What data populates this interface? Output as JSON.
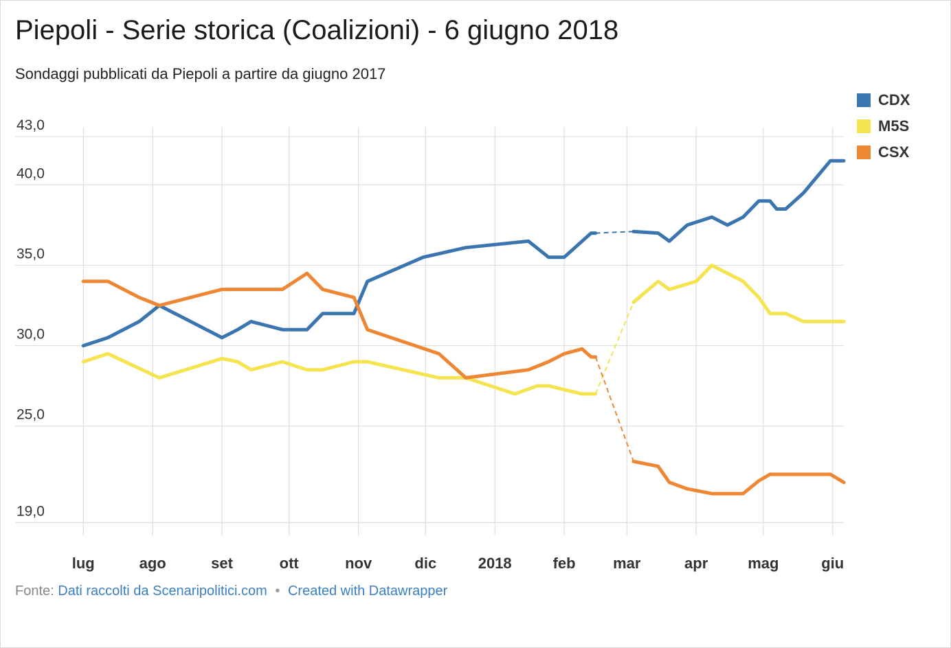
{
  "title": "Piepoli - Serie storica (Coalizioni) - 6 giugno 2018",
  "subtitle": "Sondaggi pubblicati da Piepoli a partire da giugno 2017",
  "footer": {
    "source_label": "Fonte:",
    "source_link": "Dati raccolti da Scenaripolitici.com",
    "separator": "•",
    "credit_link": "Created with Datawrapper"
  },
  "colors": {
    "CDX": "#3b75b0",
    "M5S": "#f5e34f",
    "CSX": "#ee8734",
    "grid": "#dddddd"
  },
  "chart_data": {
    "type": "line",
    "title": "Piepoli - Serie storica (Coalizioni) - 6 giugno 2018",
    "subtitle": "Sondaggi pubblicati da Piepoli a partire da giugno 2017",
    "xlabel": "",
    "ylabel": "",
    "x_range": [
      "2017-06-30",
      "2018-06-06"
    ],
    "x_ticks": [
      {
        "date": "2017-07-01",
        "label": "lug"
      },
      {
        "date": "2017-08-01",
        "label": "ago"
      },
      {
        "date": "2017-09-01",
        "label": "set"
      },
      {
        "date": "2017-10-01",
        "label": "ott"
      },
      {
        "date": "2017-11-01",
        "label": "nov"
      },
      {
        "date": "2017-12-01",
        "label": "dic"
      },
      {
        "date": "2018-01-01",
        "label": "2018"
      },
      {
        "date": "2018-02-01",
        "label": "feb"
      },
      {
        "date": "2018-03-01",
        "label": "mar"
      },
      {
        "date": "2018-04-01",
        "label": "apr"
      },
      {
        "date": "2018-05-01",
        "label": "mag"
      },
      {
        "date": "2018-06-01",
        "label": "giu"
      }
    ],
    "y_ticks": [
      {
        "value": 19,
        "label": "19,0"
      },
      {
        "value": 25,
        "label": "25,0"
      },
      {
        "value": 30,
        "label": "30,0"
      },
      {
        "value": 35,
        "label": "35,0"
      },
      {
        "value": 40,
        "label": "40,0"
      },
      {
        "value": 43,
        "label": "43,0"
      }
    ],
    "ylim": [
      18.2,
      43.6
    ],
    "grid": true,
    "legend": "top-right",
    "gap": [
      "2018-02-15",
      "2018-03-04"
    ],
    "series": [
      {
        "name": "CDX",
        "color": "#3b75b0",
        "points": [
          [
            "2017-07-01",
            30.0
          ],
          [
            "2017-07-12",
            30.5
          ],
          [
            "2017-07-26",
            31.5
          ],
          [
            "2017-08-04",
            32.5
          ],
          [
            "2017-08-25",
            31.0
          ],
          [
            "2017-09-01",
            30.5
          ],
          [
            "2017-09-08",
            31.0
          ],
          [
            "2017-09-14",
            31.5
          ],
          [
            "2017-09-28",
            31.0
          ],
          [
            "2017-10-09",
            31.0
          ],
          [
            "2017-10-16",
            32.0
          ],
          [
            "2017-10-30",
            32.0
          ],
          [
            "2017-11-05",
            34.0
          ],
          [
            "2017-11-30",
            35.5
          ],
          [
            "2017-12-19",
            36.1
          ],
          [
            "2018-01-16",
            36.5
          ],
          [
            "2018-01-25",
            35.5
          ],
          [
            "2018-02-01",
            35.5
          ],
          [
            "2018-02-13",
            37.0
          ],
          [
            "2018-02-15",
            37.0
          ],
          [
            "2018-03-04",
            37.1
          ],
          [
            "2018-03-15",
            37.0
          ],
          [
            "2018-03-20",
            36.5
          ],
          [
            "2018-03-28",
            37.5
          ],
          [
            "2018-04-08",
            38.0
          ],
          [
            "2018-04-15",
            37.5
          ],
          [
            "2018-04-22",
            38.0
          ],
          [
            "2018-04-29",
            39.0
          ],
          [
            "2018-05-04",
            39.0
          ],
          [
            "2018-05-07",
            38.5
          ],
          [
            "2018-05-11",
            38.5
          ],
          [
            "2018-05-19",
            39.5
          ],
          [
            "2018-05-31",
            41.5
          ],
          [
            "2018-06-06",
            41.5
          ]
        ]
      },
      {
        "name": "M5S",
        "color": "#f5e34f",
        "points": [
          [
            "2017-07-01",
            29.0
          ],
          [
            "2017-07-12",
            29.5
          ],
          [
            "2017-08-04",
            28.0
          ],
          [
            "2017-09-01",
            29.2
          ],
          [
            "2017-09-08",
            29.0
          ],
          [
            "2017-09-14",
            28.5
          ],
          [
            "2017-09-28",
            29.0
          ],
          [
            "2017-10-09",
            28.5
          ],
          [
            "2017-10-16",
            28.5
          ],
          [
            "2017-10-30",
            29.0
          ],
          [
            "2017-11-05",
            29.0
          ],
          [
            "2017-12-07",
            28.0
          ],
          [
            "2017-12-19",
            28.0
          ],
          [
            "2018-01-10",
            27.0
          ],
          [
            "2018-01-20",
            27.5
          ],
          [
            "2018-01-25",
            27.5
          ],
          [
            "2018-02-09",
            27.0
          ],
          [
            "2018-02-15",
            27.0
          ],
          [
            "2018-03-04",
            32.7
          ],
          [
            "2018-03-15",
            34.0
          ],
          [
            "2018-03-20",
            33.5
          ],
          [
            "2018-04-01",
            34.0
          ],
          [
            "2018-04-08",
            35.0
          ],
          [
            "2018-04-22",
            34.0
          ],
          [
            "2018-04-29",
            33.0
          ],
          [
            "2018-05-04",
            32.0
          ],
          [
            "2018-05-11",
            32.0
          ],
          [
            "2018-05-19",
            31.5
          ],
          [
            "2018-06-06",
            31.5
          ]
        ]
      },
      {
        "name": "CSX",
        "color": "#ee8734",
        "points": [
          [
            "2017-07-01",
            34.0
          ],
          [
            "2017-07-12",
            34.0
          ],
          [
            "2017-07-26",
            33.0
          ],
          [
            "2017-08-04",
            32.5
          ],
          [
            "2017-09-01",
            33.5
          ],
          [
            "2017-09-28",
            33.5
          ],
          [
            "2017-10-09",
            34.5
          ],
          [
            "2017-10-16",
            33.5
          ],
          [
            "2017-10-30",
            33.0
          ],
          [
            "2017-11-05",
            31.0
          ],
          [
            "2017-12-07",
            29.5
          ],
          [
            "2017-12-19",
            28.0
          ],
          [
            "2018-01-16",
            28.5
          ],
          [
            "2018-01-25",
            29.0
          ],
          [
            "2018-02-01",
            29.5
          ],
          [
            "2018-02-09",
            29.8
          ],
          [
            "2018-02-13",
            29.3
          ],
          [
            "2018-02-15",
            29.3
          ],
          [
            "2018-03-04",
            22.8
          ],
          [
            "2018-03-15",
            22.5
          ],
          [
            "2018-03-20",
            21.5
          ],
          [
            "2018-03-28",
            21.1
          ],
          [
            "2018-04-08",
            20.8
          ],
          [
            "2018-04-22",
            20.8
          ],
          [
            "2018-04-29",
            21.6
          ],
          [
            "2018-05-04",
            22.0
          ],
          [
            "2018-05-07",
            22.0
          ],
          [
            "2018-05-19",
            22.0
          ],
          [
            "2018-05-31",
            22.0
          ],
          [
            "2018-06-06",
            21.5
          ]
        ]
      }
    ]
  }
}
